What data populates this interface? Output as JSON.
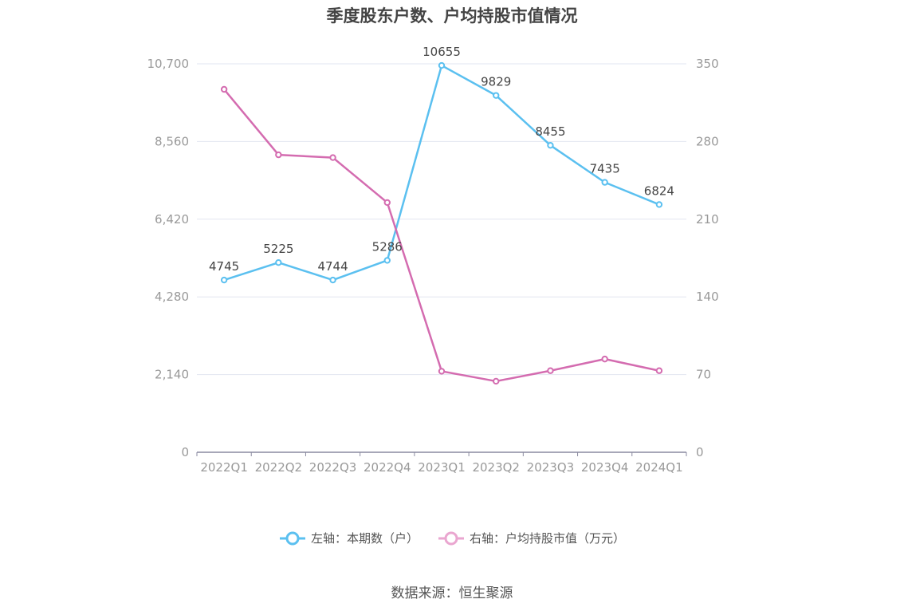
{
  "chart_data": {
    "type": "line",
    "title": "季度股东户数、户均持股市值情况",
    "categories": [
      "2022Q1",
      "2022Q2",
      "2022Q3",
      "2022Q4",
      "2023Q1",
      "2023Q2",
      "2023Q3",
      "2023Q4",
      "2024Q1"
    ],
    "left_axis": {
      "ticks": [
        "0",
        "2,140",
        "4,280",
        "6,420",
        "8,560",
        "10,700"
      ],
      "ylim": [
        0,
        10700
      ]
    },
    "right_axis": {
      "ticks": [
        "0",
        "70",
        "140",
        "210",
        "280",
        "350"
      ],
      "ylim": [
        0,
        350
      ]
    },
    "series": [
      {
        "name": "左轴：本期数（户）",
        "axis": "left",
        "color": "#5bc0f0",
        "values": [
          4745,
          5225,
          4744,
          5286,
          10655,
          9829,
          8455,
          7435,
          6824
        ],
        "labels": [
          "4745",
          "5225",
          "4744",
          "5286",
          "10655",
          "9829",
          "8455",
          "7435",
          "6824"
        ]
      },
      {
        "name": "右轴：户均持股市值（万元）",
        "axis": "right",
        "color": "#d46cb0",
        "values": [
          327,
          268,
          265.5,
          225,
          73,
          64,
          73.5,
          84,
          73.5
        ]
      }
    ],
    "grid": true,
    "legend_position": "bottom"
  },
  "source": "数据来源：恒生聚源"
}
